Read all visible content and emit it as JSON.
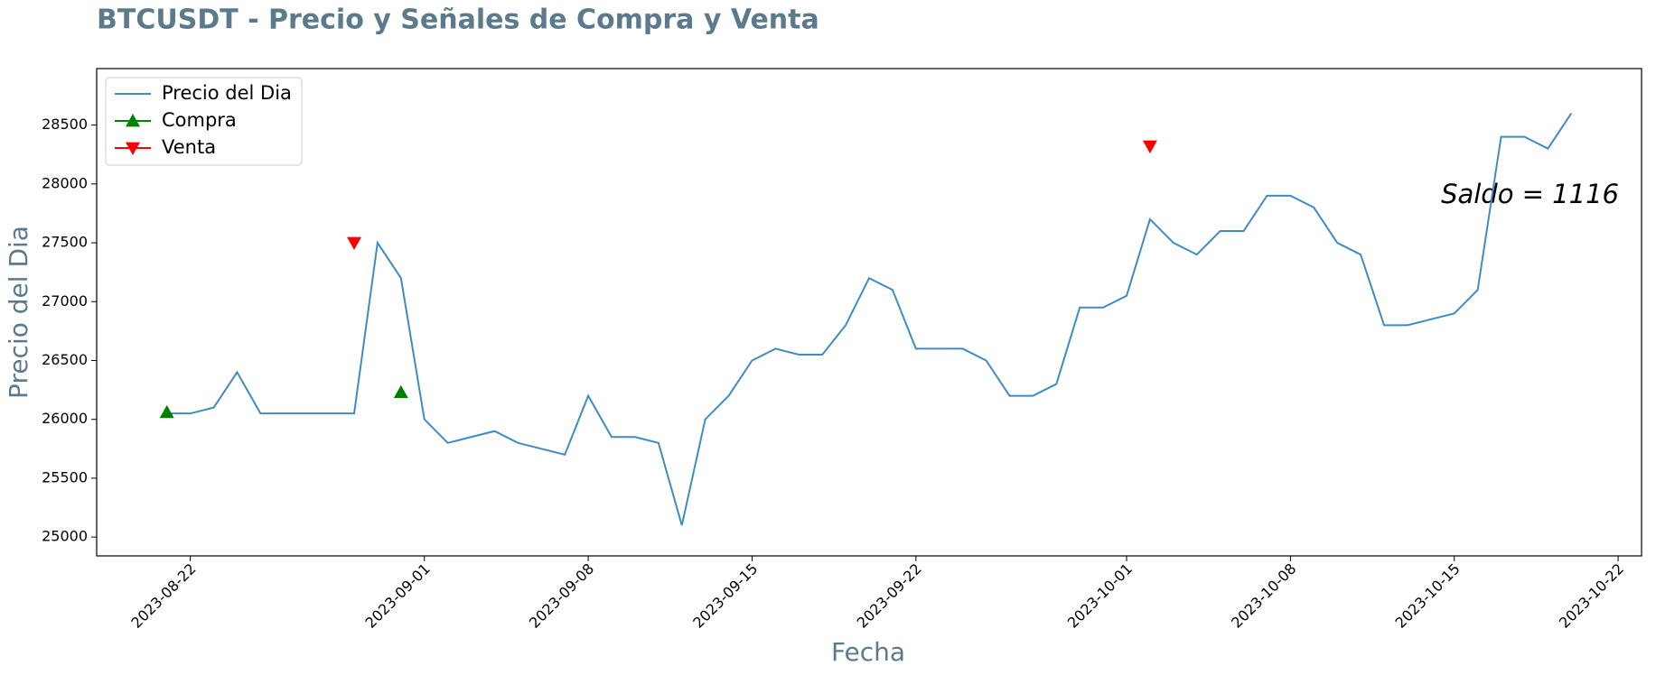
{
  "chart_data": {
    "type": "line",
    "title": "BTCUSDT - Precio y Señales de Compra y Venta",
    "x_label": "Fecha",
    "y_label": "Precio del Dia",
    "annotation": "Saldo = 1116",
    "xlim": [
      "2023-08-18",
      "2023-10-23"
    ],
    "xticks": [
      "2023-08-22",
      "2023-09-01",
      "2023-09-08",
      "2023-09-15",
      "2023-09-22",
      "2023-10-01",
      "2023-10-08",
      "2023-10-15",
      "2023-10-22"
    ],
    "ylim": [
      24840,
      28980
    ],
    "yticks": [
      25000,
      25500,
      26000,
      26500,
      27000,
      27500,
      28000,
      28500
    ],
    "legend": "upper left",
    "series": [
      {
        "name": "Precio del Dia",
        "color": "#3f8cc2",
        "marker": "none",
        "x": [
          "2023-08-21",
          "2023-08-22",
          "2023-08-23",
          "2023-08-24",
          "2023-08-25",
          "2023-08-26",
          "2023-08-27",
          "2023-08-28",
          "2023-08-29",
          "2023-08-30",
          "2023-08-31",
          "2023-09-01",
          "2023-09-02",
          "2023-09-03",
          "2023-09-04",
          "2023-09-05",
          "2023-09-06",
          "2023-09-07",
          "2023-09-08",
          "2023-09-09",
          "2023-09-10",
          "2023-09-11",
          "2023-09-12",
          "2023-09-13",
          "2023-09-14",
          "2023-09-15",
          "2023-09-16",
          "2023-09-17",
          "2023-09-18",
          "2023-09-19",
          "2023-09-20",
          "2023-09-21",
          "2023-09-22",
          "2023-09-23",
          "2023-09-24",
          "2023-09-25",
          "2023-09-26",
          "2023-09-27",
          "2023-09-28",
          "2023-09-29",
          "2023-09-30",
          "2023-10-01",
          "2023-10-02",
          "2023-10-03",
          "2023-10-04",
          "2023-10-05",
          "2023-10-06",
          "2023-10-07",
          "2023-10-08",
          "2023-10-09",
          "2023-10-10",
          "2023-10-11",
          "2023-10-12",
          "2023-10-13",
          "2023-10-14",
          "2023-10-15",
          "2023-10-16",
          "2023-10-17",
          "2023-10-18",
          "2023-10-19",
          "2023-10-20"
        ],
        "values": [
          26050,
          26050,
          26100,
          26400,
          26050,
          26050,
          26050,
          26050,
          26050,
          27500,
          27200,
          26000,
          25800,
          25850,
          25900,
          25800,
          25750,
          25700,
          26200,
          25850,
          25850,
          25800,
          25100,
          26000,
          26200,
          26500,
          26600,
          26550,
          26550,
          26800,
          27200,
          27100,
          26600,
          26600,
          26600,
          26500,
          26200,
          26200,
          26300,
          26950,
          26950,
          27050,
          27700,
          27500,
          27400,
          27600,
          27600,
          27900,
          27900,
          27800,
          27500,
          27400,
          26800,
          26800,
          26850,
          26900,
          27100,
          28400,
          28400,
          28300,
          28600
        ]
      },
      {
        "name": "Compra",
        "color": "#008000",
        "marker": "triangle-up",
        "x": [
          "2023-08-21",
          "2023-08-31"
        ],
        "values": [
          26060,
          26230
        ]
      },
      {
        "name": "Venta",
        "color": "#ff0000",
        "marker": "triangle-down",
        "x": [
          "2023-08-29",
          "2023-10-02"
        ],
        "values": [
          27500,
          28320
        ]
      }
    ]
  }
}
